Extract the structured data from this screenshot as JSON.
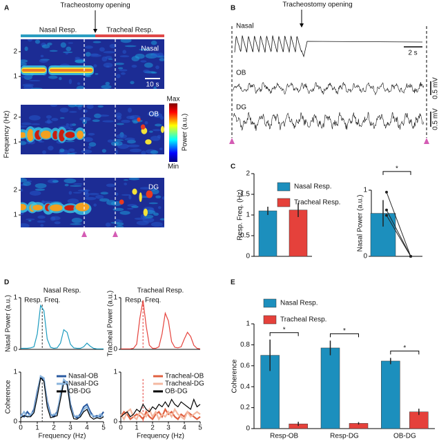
{
  "panel_labels": [
    "A",
    "B",
    "C",
    "D",
    "E"
  ],
  "chart_data": [
    {
      "type": "spectrogram",
      "event": "Tracheostomy opening",
      "periods": [
        "Nasal Resp.",
        "Tracheal Resp."
      ],
      "ylabel": "Frequency (Hz)",
      "scale_bar": "10 s",
      "colorbar": {
        "label": "Power (a.u.)",
        "max": "Max",
        "min": "Min"
      },
      "panels": [
        {
          "title": "Nasal",
          "peak_freq": 1.25,
          "ylim": [
            0.5,
            2.5
          ],
          "yticks": [
            1,
            2
          ]
        },
        {
          "title": "OB",
          "peak_freq": 1.3,
          "ylim": [
            0.5,
            2.5
          ],
          "yticks": [
            1,
            2
          ]
        },
        {
          "title": "DG",
          "peak_freq": 1.3,
          "ylim": [
            0.5,
            2.5
          ],
          "yticks": [
            1,
            2
          ]
        }
      ]
    },
    {
      "type": "traces",
      "event": "Tracheostomy opening",
      "traces": [
        "Nasal",
        "OB",
        "DG"
      ],
      "time_scale": "2 s",
      "amplitude_scale": "0.5 mV"
    },
    {
      "type": "bar",
      "ylabel": "Resp. Freq. (Hz)",
      "categories": [
        null
      ],
      "series": [
        {
          "name": "Nasal Resp.",
          "color": "#1c8fbd",
          "values": [
            1.1
          ],
          "errors": [
            0.1
          ]
        },
        {
          "name": "Tracheal Resp.",
          "color": "#e5413b",
          "values": [
            1.12
          ],
          "errors": [
            0.17
          ]
        }
      ],
      "ylim": [
        0,
        2
      ],
      "yticks": [
        0,
        0.5,
        1,
        1.5,
        2
      ]
    },
    {
      "type": "bar",
      "ylabel": "Nasal Power (a.u.)",
      "categories": [
        null
      ],
      "series": [
        {
          "color": "#1c8fbd",
          "values": [
            0.65
          ],
          "errors": [
            0.2
          ]
        },
        {
          "color": "#e5413b",
          "values": [
            0
          ]
        }
      ],
      "points": [
        [
          0.97,
          0
        ],
        [
          0.7,
          0
        ],
        [
          0.62,
          0
        ]
      ],
      "significance": [
        "*"
      ],
      "ylim": [
        0,
        1
      ],
      "yticks": [
        0,
        1
      ]
    },
    {
      "type": "line",
      "title": "Nasal Resp.",
      "ylabel": "Nasal Power (a.u.)",
      "annotation": "Resp. Freq.",
      "marker_x": 1.3,
      "marker_color": "#333333",
      "x": [
        0,
        0.2,
        0.4,
        0.6,
        0.8,
        1,
        1.2,
        1.4,
        1.6,
        1.8,
        2,
        2.2,
        2.4,
        2.6,
        2.8,
        3,
        3.2,
        3.4,
        3.6,
        3.8,
        4,
        4.2,
        4.4,
        4.6,
        4.8,
        5
      ],
      "series": [
        {
          "color": "#1b9bbf",
          "values": [
            0.02,
            0.02,
            0.02,
            0.03,
            0.05,
            0.3,
            0.85,
            0.75,
            0.2,
            0.04,
            0.02,
            0.03,
            0.12,
            0.38,
            0.33,
            0.1,
            0.03,
            0.02,
            0.02,
            0.05,
            0.12,
            0.06,
            0.02,
            0.01,
            0.01,
            0.01
          ]
        }
      ],
      "xlim": [
        0,
        5
      ],
      "ylim": [
        0,
        1
      ],
      "yticks": [
        0,
        1
      ]
    },
    {
      "type": "line",
      "title": "Tracheal Resp.",
      "ylabel": "Tracheal Power (a.u.)",
      "annotation": "Resp. Freq.",
      "marker_x": 1.4,
      "marker_color": "#e5413b",
      "x": [
        0,
        0.2,
        0.4,
        0.6,
        0.8,
        1,
        1.2,
        1.4,
        1.6,
        1.8,
        2,
        2.2,
        2.4,
        2.6,
        2.8,
        3,
        3.2,
        3.4,
        3.6,
        3.8,
        4,
        4.2,
        4.4,
        4.6,
        4.8,
        5
      ],
      "series": [
        {
          "color": "#e5413b",
          "values": [
            0.01,
            0.01,
            0.01,
            0.01,
            0.02,
            0.1,
            0.6,
            0.95,
            0.45,
            0.08,
            0.02,
            0.02,
            0.05,
            0.3,
            0.7,
            0.55,
            0.15,
            0.04,
            0.03,
            0.05,
            0.2,
            0.33,
            0.25,
            0.08,
            0.02,
            0.01
          ]
        }
      ],
      "xlim": [
        0,
        5
      ],
      "ylim": [
        0,
        1
      ],
      "yticks": [
        0,
        1
      ]
    },
    {
      "type": "line",
      "ylabel": "Coherence",
      "xlabel": "Frequency (Hz)",
      "marker_x": 1.3,
      "marker_color": "#333333",
      "x": [
        0,
        0.2,
        0.4,
        0.6,
        0.8,
        1,
        1.2,
        1.4,
        1.6,
        1.8,
        2,
        2.2,
        2.4,
        2.6,
        2.8,
        3,
        3.2,
        3.4,
        3.6,
        3.8,
        4,
        4.2,
        4.4,
        4.6,
        4.8,
        5
      ],
      "series": [
        {
          "name": "Nasal-OB",
          "color": "#2a5aa0",
          "values": [
            0.15,
            0.1,
            0.2,
            0.12,
            0.25,
            0.6,
            0.9,
            0.85,
            0.4,
            0.15,
            0.1,
            0.2,
            0.5,
            0.82,
            0.8,
            0.35,
            0.12,
            0.08,
            0.15,
            0.3,
            0.35,
            0.2,
            0.1,
            0.12,
            0.1,
            0.2
          ]
        },
        {
          "name": "Nasal-DG",
          "color": "#8ab4dc",
          "values": [
            0.1,
            0.2,
            0.1,
            0.15,
            0.2,
            0.55,
            0.92,
            0.88,
            0.35,
            0.12,
            0.15,
            0.15,
            0.55,
            0.85,
            0.78,
            0.3,
            0.1,
            0.12,
            0.1,
            0.25,
            0.3,
            0.15,
            0.12,
            0.08,
            0.15,
            0.1
          ]
        },
        {
          "name": "OB-DG",
          "color": "#000000",
          "values": [
            0.08,
            0.12,
            0.1,
            0.1,
            0.18,
            0.5,
            0.88,
            0.82,
            0.3,
            0.08,
            0.1,
            0.12,
            0.45,
            0.8,
            0.75,
            0.28,
            0.06,
            0.05,
            0.1,
            0.2,
            0.25,
            0.1,
            0.05,
            0.08,
            0.06,
            0.1
          ]
        }
      ],
      "xlim": [
        0,
        5
      ],
      "xticks": [
        0,
        1,
        2,
        3,
        4,
        5
      ],
      "ylim": [
        0,
        1
      ],
      "yticks": [
        0,
        1
      ]
    },
    {
      "type": "line",
      "xlabel": "Frequency (Hz)",
      "marker_x": 1.4,
      "marker_color": "#e5413b",
      "x": [
        0,
        0.2,
        0.4,
        0.6,
        0.8,
        1,
        1.2,
        1.4,
        1.6,
        1.8,
        2,
        2.2,
        2.4,
        2.6,
        2.8,
        3,
        3.2,
        3.4,
        3.6,
        3.8,
        4,
        4.2,
        4.4,
        4.6,
        4.8,
        5
      ],
      "series": [
        {
          "name": "Tracheal-OB",
          "color": "#e06040",
          "values": [
            0.1,
            0.2,
            0.15,
            0.05,
            0.1,
            0.15,
            0.12,
            0.05,
            0.2,
            0.1,
            0.05,
            0.15,
            0.2,
            0.1,
            0.25,
            0.15,
            0.2,
            0.1,
            0.05,
            0.15,
            0.1,
            0.2,
            0.15,
            0.1,
            0.05,
            0.1
          ]
        },
        {
          "name": "Tracheal-DG",
          "color": "#f4b8a0",
          "values": [
            0.15,
            0.05,
            0.2,
            0.25,
            0.1,
            0.05,
            0.2,
            0.15,
            0.1,
            0.25,
            0.1,
            0.2,
            0.05,
            0.15,
            0.1,
            0.2,
            0.1,
            0.25,
            0.15,
            0.1,
            0.05,
            0.2,
            0.1,
            0.15,
            0.2,
            0.15
          ]
        },
        {
          "name": "OB-DG",
          "color": "#000000",
          "values": [
            0.1,
            0.15,
            0.2,
            0.1,
            0.15,
            0.25,
            0.2,
            0.35,
            0.25,
            0.2,
            0.3,
            0.25,
            0.35,
            0.3,
            0.4,
            0.3,
            0.45,
            0.35,
            0.3,
            0.4,
            0.35,
            0.3,
            0.25,
            0.45,
            0.3,
            0.35
          ]
        }
      ],
      "xlim": [
        0,
        5
      ],
      "xticks": [
        0,
        1,
        2,
        3,
        4,
        5
      ],
      "ylim": [
        0,
        1
      ],
      "yticks": [
        0,
        1
      ]
    },
    {
      "type": "bar",
      "ylabel": "Coherence",
      "categories": [
        "Resp-OB",
        "Resp-DG",
        "OB-DG"
      ],
      "series": [
        {
          "name": "Nasal Resp.",
          "color": "#1c8fbd",
          "values": [
            0.7,
            0.77,
            0.645
          ],
          "errors": [
            0.15,
            0.07,
            0.03
          ]
        },
        {
          "name": "Tracheal Resp.",
          "color": "#e5413b",
          "values": [
            0.045,
            0.05,
            0.16
          ],
          "errors": [
            0.02,
            0.012,
            0.03
          ]
        }
      ],
      "significance": [
        "*",
        "*",
        "*"
      ],
      "ylim": [
        0,
        1
      ],
      "yticks": [
        0,
        0.2,
        0.4,
        0.6,
        0.8,
        1
      ]
    }
  ]
}
